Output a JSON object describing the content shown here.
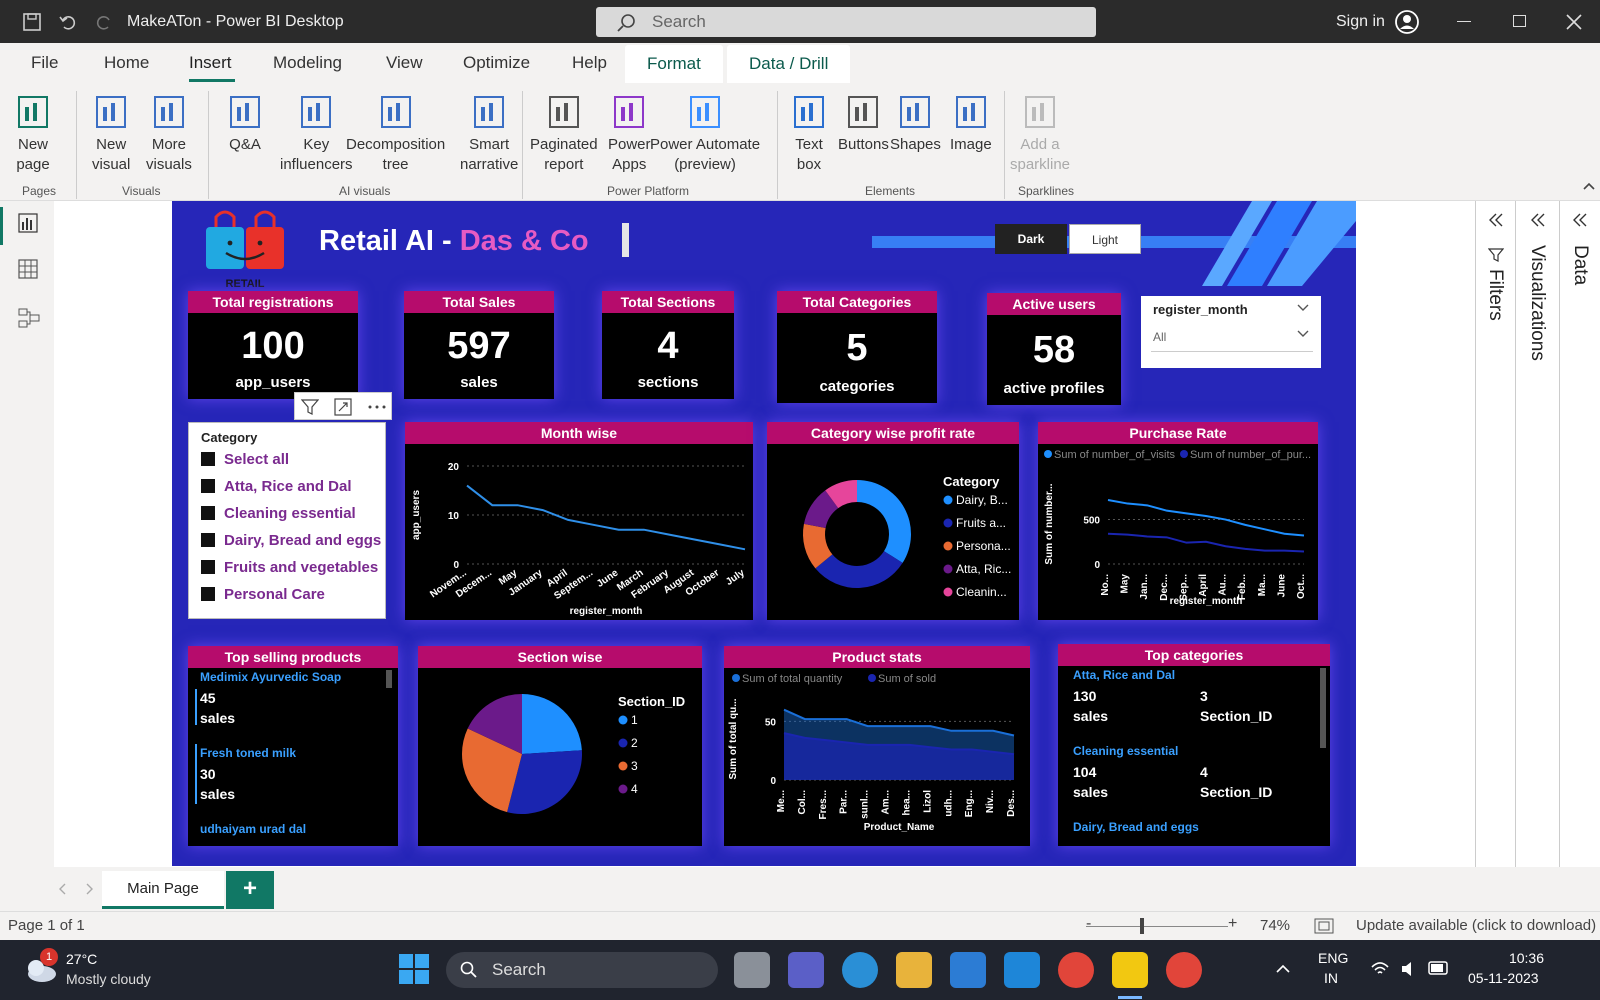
{
  "window": {
    "title": "MakeATon - Power BI Desktop",
    "search_placeholder": "Search",
    "signin": "Sign in"
  },
  "menu": {
    "tabs": [
      "File",
      "Home",
      "Insert",
      "Modeling",
      "View",
      "Optimize",
      "Help"
    ],
    "ctx_tabs": [
      "Format",
      "Data / Drill"
    ],
    "active": "Insert"
  },
  "ribbon": {
    "buttons": [
      {
        "label": "New\npage",
        "name": "new-page"
      },
      {
        "label": "New\nvisual",
        "name": "new-visual"
      },
      {
        "label": "More\nvisuals",
        "name": "more-visuals"
      },
      {
        "label": "Q&A",
        "name": "qa"
      },
      {
        "label": "Key\ninfluencers",
        "name": "key-influencers"
      },
      {
        "label": "Decomposition\ntree",
        "name": "decomposition-tree"
      },
      {
        "label": "Smart\nnarrative",
        "name": "smart-narrative"
      },
      {
        "label": "Paginated\nreport",
        "name": "paginated-report"
      },
      {
        "label": "Power\nApps",
        "name": "power-apps"
      },
      {
        "label": "Power Automate\n(preview)",
        "name": "power-automate"
      },
      {
        "label": "Text\nbox",
        "name": "text-box"
      },
      {
        "label": "Buttons",
        "name": "buttons"
      },
      {
        "label": "Shapes",
        "name": "shapes"
      },
      {
        "label": "Image",
        "name": "image"
      },
      {
        "label": "Add a\nsparkline",
        "name": "add-sparkline"
      }
    ],
    "groups": [
      "Pages",
      "Visuals",
      "AI visuals",
      "Power Platform",
      "Elements",
      "Sparklines"
    ]
  },
  "report": {
    "title_a": "Retail AI - ",
    "title_b": "Das & Co",
    "logo_text": "RETAIL",
    "toggle": {
      "dark": "Dark",
      "light": "Light"
    },
    "kpis": [
      {
        "header": "Total registrations",
        "value": "100",
        "unit": "app_users"
      },
      {
        "header": "Total Sales",
        "value": "597",
        "unit": "sales"
      },
      {
        "header": "Total Sections",
        "value": "4",
        "unit": "sections"
      },
      {
        "header": "Total Categories",
        "value": "5",
        "unit": "categories"
      },
      {
        "header": "Active users",
        "value": "58",
        "unit": "active profiles"
      }
    ],
    "month_slicer": {
      "label": "register_month",
      "value": "All"
    },
    "category_slicer": {
      "title": "Category",
      "items": [
        "Select all",
        "Atta, Rice and Dal",
        "Cleaning essential",
        "Dairy, Bread and eggs",
        "Fruits and vegetables",
        "Personal Care"
      ]
    },
    "top_selling": {
      "header": "Top selling products",
      "items": [
        {
          "name": "Medimix Ayurvedic Soap",
          "value": "45",
          "unit": "sales"
        },
        {
          "name": "Fresh toned milk",
          "value": "30",
          "unit": "sales"
        },
        {
          "name": "udhaiyam urad dal"
        }
      ]
    },
    "top_categories": {
      "header": "Top categories",
      "items": [
        {
          "name": "Atta, Rice and Dal",
          "sales": "130",
          "sales_unit": "sales",
          "section": "3",
          "section_unit": "Section_ID"
        },
        {
          "name": "Cleaning essential",
          "sales": "104",
          "sales_unit": "sales",
          "section": "4",
          "section_unit": "Section_ID"
        },
        {
          "name": "Dairy, Bread and eggs"
        }
      ]
    }
  },
  "chart_data": [
    {
      "id": "month-wise",
      "type": "line",
      "title": "Month wise",
      "xlabel": "register_month",
      "ylabel": "app_users",
      "categories": [
        "Novem...",
        "Decem...",
        "May",
        "January",
        "April",
        "Septem...",
        "June",
        "March",
        "February",
        "August",
        "October",
        "July"
      ],
      "values": [
        16,
        12,
        12,
        11,
        9,
        8,
        7,
        7,
        6,
        5,
        4,
        3
      ],
      "ylim": [
        0,
        20
      ],
      "yticks": [
        0,
        10,
        20
      ],
      "color": "#2f8fe8"
    },
    {
      "id": "category-profit",
      "type": "pie",
      "title": "Category wise profit rate",
      "donut": true,
      "legend_title": "Category",
      "labels": [
        "Dairy, B...",
        "Fruits a...",
        "Persona...",
        "Atta, Ric...",
        "Cleanin..."
      ],
      "values": [
        34,
        30,
        14,
        12,
        10
      ],
      "colors": [
        "#1e8fff",
        "#1a25b0",
        "#e86a32",
        "#6b1a8a",
        "#e6459b"
      ]
    },
    {
      "id": "purchase-rate",
      "type": "line",
      "title": "Purchase Rate",
      "xlabel": "register_month",
      "ylabel": "Sum of number...",
      "categories": [
        "No...",
        "May",
        "Jan...",
        "Dec...",
        "Sep...",
        "April",
        "Au...",
        "Feb...",
        "Ma...",
        "June",
        "Oct..."
      ],
      "series": [
        {
          "name": "Sum of number_of_visits",
          "values": [
            720,
            680,
            660,
            600,
            570,
            540,
            500,
            440,
            390,
            340,
            320
          ],
          "color": "#1e8fff"
        },
        {
          "name": "Sum of number_of_pur...",
          "values": [
            340,
            330,
            310,
            300,
            240,
            250,
            200,
            170,
            150,
            150,
            140
          ],
          "color": "#1a25b0"
        }
      ],
      "ylim": [
        0,
        900
      ],
      "yticks": [
        0,
        500
      ]
    },
    {
      "id": "section-wise",
      "type": "pie",
      "title": "Section wise",
      "legend_title": "Section_ID",
      "labels": [
        "1",
        "2",
        "3",
        "4"
      ],
      "values": [
        24,
        30,
        28,
        18
      ],
      "colors": [
        "#1e8fff",
        "#1a25b0",
        "#e86a32",
        "#6b1a8a"
      ]
    },
    {
      "id": "product-stats",
      "type": "area",
      "title": "Product stats",
      "xlabel": "Product_Name",
      "ylabel": "Sum of total qu...",
      "categories": [
        "Me...",
        "Col...",
        "Fres...",
        "Par...",
        "sunl...",
        "Am...",
        "hea...",
        "Lizol",
        "udh...",
        "Eng...",
        "Niv...",
        "Des..."
      ],
      "series": [
        {
          "name": "Sum of total quantity",
          "values": [
            60,
            52,
            52,
            52,
            46,
            46,
            46,
            46,
            42,
            42,
            42,
            38
          ],
          "color": "#1a6fd8"
        },
        {
          "name": "Sum of sold",
          "values": [
            40,
            36,
            34,
            32,
            30,
            30,
            30,
            28,
            26,
            26,
            24,
            22
          ],
          "color": "#1a25b0"
        }
      ],
      "ylim": [
        0,
        70
      ],
      "yticks": [
        0,
        50
      ]
    }
  ],
  "pages": {
    "tab": "Main Page",
    "add": "+"
  },
  "status": {
    "page": "Page 1 of 1",
    "zoom": "74%",
    "update": "Update available (click to download)"
  },
  "right_panes": [
    "Filters",
    "Visualizations",
    "Data"
  ],
  "taskbar": {
    "temp": "27°C",
    "weather": "Mostly cloudy",
    "badge": "1",
    "search": "Search",
    "lang1": "ENG",
    "lang2": "IN",
    "time": "10:36",
    "date": "05-11-2023"
  }
}
